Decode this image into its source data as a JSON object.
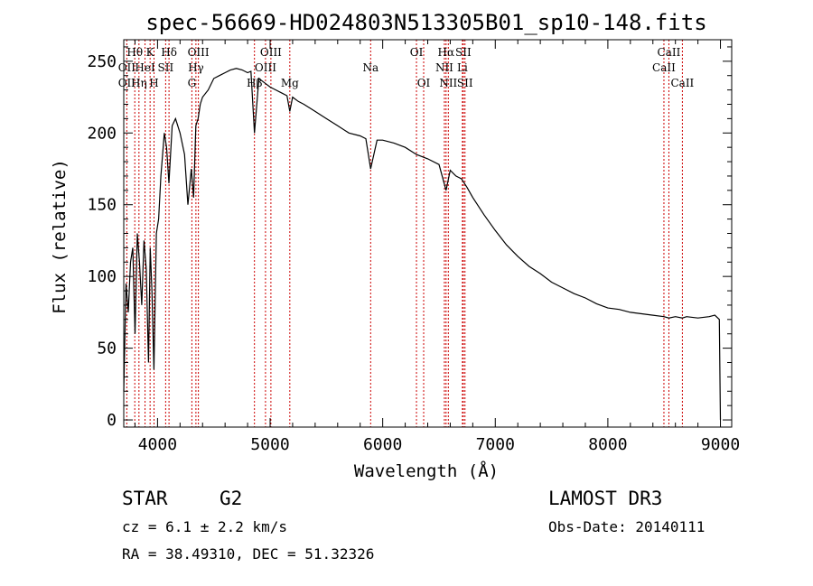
{
  "chart_data": {
    "type": "line",
    "title": "spec-56669-HD024803N513305B01_sp10-148.fits",
    "xlabel": "Wavelength (Å)",
    "ylabel": "Flux (relative)",
    "xlim": [
      3700,
      9100
    ],
    "ylim": [
      -5,
      265
    ],
    "x_ticks": [
      4000,
      5000,
      6000,
      7000,
      8000,
      9000
    ],
    "y_ticks": [
      0,
      50,
      100,
      150,
      200,
      250
    ],
    "series": [
      {
        "name": "flux",
        "x": [
          3700,
          3720,
          3740,
          3760,
          3780,
          3800,
          3820,
          3840,
          3860,
          3880,
          3900,
          3920,
          3935,
          3950,
          3968,
          3990,
          4010,
          4030,
          4060,
          4080,
          4101,
          4130,
          4160,
          4200,
          4240,
          4270,
          4300,
          4320,
          4340,
          4360,
          4380,
          4400,
          4450,
          4500,
          4550,
          4600,
          4650,
          4700,
          4750,
          4800,
          4830,
          4861,
          4900,
          4950,
          5000,
          5050,
          5100,
          5150,
          5175,
          5200,
          5250,
          5300,
          5400,
          5500,
          5600,
          5700,
          5800,
          5850,
          5893,
          5950,
          6000,
          6100,
          6200,
          6300,
          6400,
          6500,
          6563,
          6600,
          6650,
          6700,
          6750,
          6800,
          6900,
          7000,
          7100,
          7200,
          7300,
          7400,
          7500,
          7600,
          7700,
          7800,
          7900,
          8000,
          8100,
          8200,
          8300,
          8400,
          8498,
          8542,
          8600,
          8662,
          8700,
          8800,
          8900,
          8950,
          8990,
          9000
        ],
        "y": [
          20,
          95,
          75,
          110,
          120,
          60,
          130,
          110,
          80,
          125,
          105,
          40,
          120,
          90,
          35,
          130,
          140,
          170,
          200,
          190,
          165,
          205,
          210,
          200,
          185,
          150,
          175,
          155,
          205,
          210,
          220,
          225,
          230,
          238,
          240,
          242,
          244,
          245,
          244,
          242,
          243,
          200,
          238,
          235,
          232,
          230,
          228,
          226,
          215,
          225,
          222,
          220,
          215,
          210,
          205,
          200,
          198,
          196,
          175,
          195,
          195,
          193,
          190,
          185,
          182,
          178,
          160,
          174,
          170,
          168,
          162,
          155,
          143,
          132,
          122,
          114,
          107,
          102,
          96,
          92,
          88,
          85,
          81,
          78,
          77,
          75,
          74,
          73,
          72,
          71,
          72,
          71,
          72,
          71,
          72,
          73,
          70,
          0
        ]
      }
    ],
    "line_markers": [
      {
        "label": "Hθ",
        "wavelength": 3798,
        "row": 1
      },
      {
        "label": "OII",
        "wavelength": 3727,
        "row": 2
      },
      {
        "label": "OII",
        "wavelength": 3727,
        "row": 3
      },
      {
        "label": "K",
        "wavelength": 3934,
        "row": 1
      },
      {
        "label": "HeI",
        "wavelength": 3889,
        "row": 2
      },
      {
        "label": "Hη",
        "wavelength": 3835,
        "row": 3
      },
      {
        "label": "Hδ",
        "wavelength": 4102,
        "row": 1
      },
      {
        "label": "SII",
        "wavelength": 4072,
        "row": 2
      },
      {
        "label": "H",
        "wavelength": 3969,
        "row": 3
      },
      {
        "label": "OIII",
        "wavelength": 4363,
        "row": 1
      },
      {
        "label": "Hγ",
        "wavelength": 4341,
        "row": 2
      },
      {
        "label": "G",
        "wavelength": 4305,
        "row": 3
      },
      {
        "label": "OIII",
        "wavelength": 5007,
        "row": 1
      },
      {
        "label": "OIII",
        "wavelength": 4959,
        "row": 2
      },
      {
        "label": "Hβ",
        "wavelength": 4861,
        "row": 3
      },
      {
        "label": "Mg",
        "wavelength": 5175,
        "row": 3
      },
      {
        "label": "Na",
        "wavelength": 5893,
        "row": 2
      },
      {
        "label": "OI",
        "wavelength": 6300,
        "row": 1
      },
      {
        "label": "OI",
        "wavelength": 6364,
        "row": 3
      },
      {
        "label": "Hα",
        "wavelength": 6563,
        "row": 1
      },
      {
        "label": "SII",
        "wavelength": 6716,
        "row": 1
      },
      {
        "label": "NII",
        "wavelength": 6548,
        "row": 2
      },
      {
        "label": "Li",
        "wavelength": 6708,
        "row": 2
      },
      {
        "label": "NII",
        "wavelength": 6583,
        "row": 3
      },
      {
        "label": "SII",
        "wavelength": 6731,
        "row": 3
      },
      {
        "label": "CaII",
        "wavelength": 8542,
        "row": 1
      },
      {
        "label": "CaII",
        "wavelength": 8498,
        "row": 2
      },
      {
        "label": "CaII",
        "wavelength": 8662,
        "row": 3
      }
    ],
    "marker_color": "#cc0000"
  },
  "info": {
    "class": "STAR",
    "subclass": "G2",
    "survey": "LAMOST DR3",
    "cz": "cz = 6.1 ± 2.2 km/s",
    "obs_date": "Obs-Date: 20140111",
    "coords": "RA =  38.49310, DEC =  51.32326"
  }
}
